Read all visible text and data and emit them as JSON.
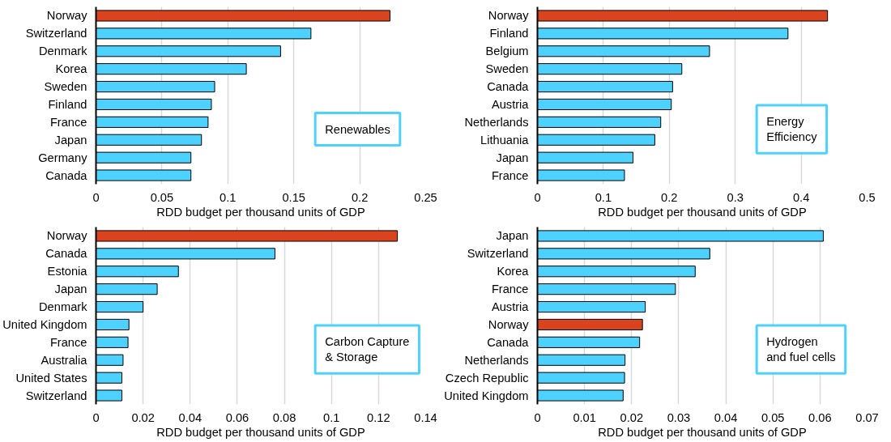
{
  "chart_data": [
    {
      "type": "bar",
      "orientation": "horizontal",
      "categories": [
        "Norway",
        "Switzerland",
        "Denmark",
        "Korea",
        "Sweden",
        "Finland",
        "France",
        "Japan",
        "Germany",
        "Canada"
      ],
      "values": [
        0.223,
        0.163,
        0.14,
        0.114,
        0.09,
        0.0875,
        0.085,
        0.08,
        0.072,
        0.072
      ],
      "colors": [
        "#d9441e",
        "#4dd2ff",
        "#4dd2ff",
        "#4dd2ff",
        "#4dd2ff",
        "#4dd2ff",
        "#4dd2ff",
        "#4dd2ff",
        "#4dd2ff",
        "#4dd2ff"
      ],
      "xlim": [
        0,
        0.25
      ],
      "xticks": [
        0,
        0.05,
        0.1,
        0.15,
        0.2,
        0.25
      ],
      "xlabel": "RDD budget per thousand units of GDP",
      "annotations": [
        "Renewables"
      ],
      "grid": "x"
    },
    {
      "type": "bar",
      "orientation": "horizontal",
      "categories": [
        "Norway",
        "Finland",
        "Belgium",
        "Sweden",
        "Canada",
        "Austria",
        "Netherlands",
        "Lithuania",
        "Japan",
        "France"
      ],
      "values": [
        0.44,
        0.38,
        0.261,
        0.219,
        0.205,
        0.203,
        0.187,
        0.178,
        0.145,
        0.132
      ],
      "colors": [
        "#d9441e",
        "#4dd2ff",
        "#4dd2ff",
        "#4dd2ff",
        "#4dd2ff",
        "#4dd2ff",
        "#4dd2ff",
        "#4dd2ff",
        "#4dd2ff",
        "#4dd2ff"
      ],
      "xlim": [
        0,
        0.5
      ],
      "xticks": [
        0,
        0.1,
        0.2,
        0.3,
        0.4,
        0.5
      ],
      "xlabel": "RDD budget per thousand units of GDP",
      "annotations": [
        "Energy\nEfficiency"
      ],
      "grid": "x"
    },
    {
      "type": "bar",
      "orientation": "horizontal",
      "categories": [
        "Norway",
        "Canada",
        "Estonia",
        "Japan",
        "Denmark",
        "United Kingdom",
        "France",
        "Australia",
        "United States",
        "Switzerland"
      ],
      "values": [
        0.128,
        0.076,
        0.035,
        0.026,
        0.02,
        0.014,
        0.0136,
        0.0115,
        0.011,
        0.011
      ],
      "colors": [
        "#d9441e",
        "#4dd2ff",
        "#4dd2ff",
        "#4dd2ff",
        "#4dd2ff",
        "#4dd2ff",
        "#4dd2ff",
        "#4dd2ff",
        "#4dd2ff",
        "#4dd2ff"
      ],
      "xlim": [
        0,
        0.14
      ],
      "xticks": [
        0,
        0.02,
        0.04,
        0.06,
        0.08,
        0.1,
        0.12,
        0.14
      ],
      "xlabel": "RDD budget per thousand units of GDP",
      "annotations": [
        "Carbon Capture\n& Storage"
      ],
      "grid": "x"
    },
    {
      "type": "bar",
      "orientation": "horizontal",
      "categories": [
        "Japan",
        "Switzerland",
        "Korea",
        "France",
        "Austria",
        "Norway",
        "Canada",
        "Netherlands",
        "Czech Republic",
        "United Kingdom"
      ],
      "values": [
        0.0607,
        0.0366,
        0.0335,
        0.0293,
        0.0229,
        0.0223,
        0.0217,
        0.0186,
        0.0185,
        0.0182
      ],
      "colors": [
        "#4dd2ff",
        "#4dd2ff",
        "#4dd2ff",
        "#4dd2ff",
        "#4dd2ff",
        "#d9441e",
        "#4dd2ff",
        "#4dd2ff",
        "#4dd2ff",
        "#4dd2ff"
      ],
      "xlim": [
        0,
        0.07
      ],
      "xticks": [
        0,
        0.01,
        0.02,
        0.03,
        0.04,
        0.05,
        0.06,
        0.07
      ],
      "xlabel": "RDD budget per thousand units of GDP",
      "annotations": [
        "Hydrogen\nand fuel cells"
      ],
      "grid": "x"
    }
  ]
}
